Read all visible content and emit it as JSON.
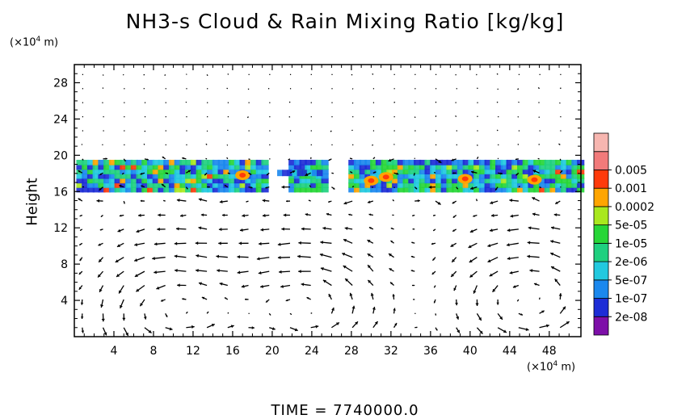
{
  "title": "NH3-s Cloud & Rain Mixing Ratio [kg/kg]",
  "y_unit_prefix": "(×10",
  "y_unit_exp": "4",
  "y_unit_suffix": " m)",
  "x_unit_prefix": "(×10",
  "x_unit_exp": "4",
  "x_unit_suffix": " m)",
  "time_text": "TIME  =  7740000.0",
  "chart_data": {
    "type": "heatmap",
    "title": "NH3-s Cloud & Rain Mixing Ratio [kg/kg]",
    "xlabel": "",
    "ylabel": "Height",
    "xunit": "(×10^4 m)",
    "yunit": "(×10^4 m)",
    "xlim": [
      0,
      51.2
    ],
    "ylim": [
      0,
      30
    ],
    "x_ticks": [
      4,
      8,
      12,
      16,
      20,
      24,
      28,
      32,
      36,
      40,
      44,
      48
    ],
    "y_ticks": [
      4,
      8,
      12,
      16,
      20,
      24,
      28
    ],
    "colorbar": {
      "labels": [
        "2e-08",
        "1e-07",
        "5e-07",
        "2e-06",
        "1e-05",
        "5e-05",
        "0.0002",
        "0.001",
        "0.005"
      ],
      "colors": [
        "#7d0fa8",
        "#1d2dd6",
        "#1b88ee",
        "#22c9df",
        "#1fd07f",
        "#27d637",
        "#a9e81e",
        "#ffa500",
        "#ff3a0a",
        "#f27a7a",
        "#f7b6b0"
      ]
    },
    "cloud_layer": {
      "z_min": 16,
      "z_max": 19.5
    },
    "wind_vectors": "quiver field over domain"
  }
}
